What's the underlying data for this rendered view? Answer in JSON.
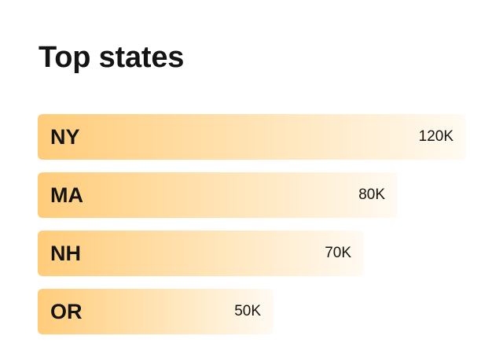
{
  "card": {
    "title": "Top states"
  },
  "colors": {
    "bar_start": "#ffcc7a",
    "bar_mid": "#ffe3b4",
    "bar_end": "#fffaf2",
    "text": "#141414"
  },
  "chart_data": {
    "type": "bar",
    "orientation": "horizontal",
    "title": "Top states",
    "categories": [
      "NY",
      "MA",
      "NH",
      "OR"
    ],
    "values": [
      120000,
      80000,
      70000,
      50000
    ],
    "value_labels": [
      "120K",
      "80K",
      "70K",
      "50K"
    ],
    "xlim": [
      0,
      120000
    ],
    "grid": false,
    "legend": "none"
  }
}
